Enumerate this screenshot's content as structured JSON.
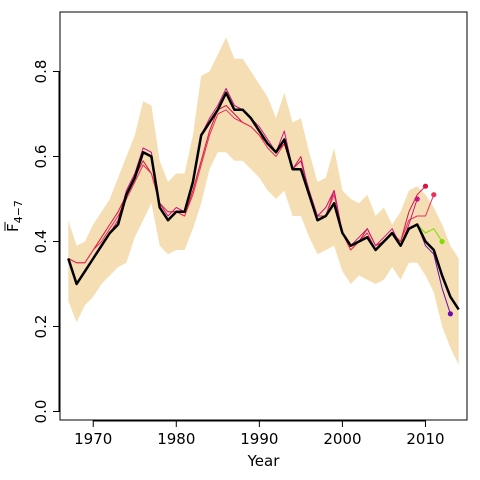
{
  "chart_data": {
    "type": "line",
    "xlabel": "Year",
    "ylabel": "F",
    "ylabel_subscript": "4−7",
    "xlim": [
      1966,
      2015
    ],
    "ylim": [
      -0.02,
      0.94
    ],
    "xticks": [
      1970,
      1980,
      1990,
      2000,
      2010
    ],
    "yticks": [
      0.0,
      0.2,
      0.4,
      0.6,
      0.8
    ],
    "ytick_labels": [
      "0.0",
      "0.2",
      "0.4",
      "0.6",
      "0.8"
    ],
    "colors": {
      "band": "#f5deb3",
      "main": "#000000",
      "retro_early": "#4b0082",
      "retro_mid": "#c71585",
      "retro_late": "#dc143c",
      "retro_green": "#7fdd00"
    },
    "band": {
      "x": [
        1967,
        1968,
        1969,
        1970,
        1971,
        1972,
        1973,
        1974,
        1975,
        1976,
        1977,
        1978,
        1979,
        1980,
        1981,
        1982,
        1983,
        1984,
        1985,
        1986,
        1987,
        1988,
        1989,
        1990,
        1991,
        1992,
        1993,
        1994,
        1995,
        1996,
        1997,
        1998,
        1999,
        2000,
        2001,
        2002,
        2003,
        2004,
        2005,
        2006,
        2007,
        2008,
        2009,
        2010,
        2011,
        2012,
        2013,
        2014
      ],
      "upper": [
        0.45,
        0.39,
        0.4,
        0.44,
        0.47,
        0.5,
        0.55,
        0.6,
        0.65,
        0.73,
        0.72,
        0.59,
        0.54,
        0.56,
        0.56,
        0.65,
        0.79,
        0.8,
        0.84,
        0.88,
        0.83,
        0.83,
        0.8,
        0.77,
        0.74,
        0.69,
        0.75,
        0.68,
        0.69,
        0.61,
        0.54,
        0.55,
        0.62,
        0.52,
        0.5,
        0.49,
        0.51,
        0.46,
        0.48,
        0.44,
        0.47,
        0.52,
        0.53,
        0.51,
        0.48,
        0.44,
        0.39,
        0.36
      ],
      "lower": [
        0.26,
        0.21,
        0.25,
        0.27,
        0.3,
        0.32,
        0.34,
        0.35,
        0.41,
        0.45,
        0.49,
        0.39,
        0.37,
        0.38,
        0.38,
        0.43,
        0.49,
        0.57,
        0.61,
        0.61,
        0.59,
        0.59,
        0.57,
        0.55,
        0.52,
        0.5,
        0.52,
        0.46,
        0.46,
        0.41,
        0.37,
        0.38,
        0.39,
        0.33,
        0.3,
        0.32,
        0.31,
        0.3,
        0.31,
        0.34,
        0.31,
        0.35,
        0.35,
        0.32,
        0.28,
        0.2,
        0.15,
        0.11
      ]
    },
    "series": [
      {
        "color": "#dc143c",
        "width": 1,
        "x": [
          1967,
          1968,
          1969,
          1970,
          1971,
          1972,
          1973,
          1974,
          1975,
          1976,
          1977,
          1978,
          1979,
          1980,
          1981,
          1982,
          1983,
          1984,
          1985,
          1986,
          1987,
          1988,
          1989,
          1990,
          1991,
          1992,
          1993,
          1994,
          1995,
          1996,
          1997,
          1998,
          1999,
          2000,
          2001,
          2002,
          2003,
          2004,
          2005,
          2006,
          2007,
          2008,
          2009,
          2010
        ],
        "y": [
          0.36,
          0.35,
          0.35,
          0.38,
          0.41,
          0.44,
          0.47,
          0.51,
          0.55,
          0.59,
          0.56,
          0.49,
          0.47,
          0.47,
          0.46,
          0.52,
          0.59,
          0.66,
          0.71,
          0.72,
          0.7,
          0.68,
          0.67,
          0.65,
          0.63,
          0.61,
          0.63,
          0.57,
          0.6,
          0.51,
          0.46,
          0.46,
          0.52,
          0.42,
          0.38,
          0.4,
          0.43,
          0.39,
          0.4,
          0.42,
          0.4,
          0.47,
          0.51,
          0.53
        ],
        "end_marker": true
      },
      {
        "color": "#e8305c",
        "width": 1,
        "x": [
          1967,
          1968,
          1969,
          1970,
          1971,
          1972,
          1973,
          1974,
          1975,
          1976,
          1977,
          1978,
          1979,
          1980,
          1981,
          1982,
          1983,
          1984,
          1985,
          1986,
          1987,
          1988,
          1989,
          1990,
          1991,
          1992,
          1993,
          1994,
          1995,
          1996,
          1997,
          1998,
          1999,
          2000,
          2001,
          2002,
          2003,
          2004,
          2005,
          2006,
          2007,
          2008,
          2009,
          2010,
          2011
        ],
        "y": [
          0.36,
          0.35,
          0.35,
          0.38,
          0.4,
          0.43,
          0.46,
          0.5,
          0.54,
          0.58,
          0.56,
          0.49,
          0.47,
          0.47,
          0.46,
          0.51,
          0.58,
          0.65,
          0.7,
          0.71,
          0.69,
          0.68,
          0.67,
          0.65,
          0.62,
          0.6,
          0.63,
          0.57,
          0.59,
          0.51,
          0.45,
          0.46,
          0.51,
          0.42,
          0.38,
          0.4,
          0.42,
          0.38,
          0.4,
          0.42,
          0.4,
          0.45,
          0.46,
          0.46,
          0.51
        ],
        "end_marker": true
      },
      {
        "color": "#c71585",
        "width": 1,
        "x": [
          1967,
          1968,
          1969,
          1970,
          1971,
          1972,
          1973,
          1974,
          1975,
          1976,
          1977,
          1978,
          1979,
          1980,
          1981,
          1982,
          1983,
          1984,
          1985,
          1986,
          1987,
          1988,
          1989,
          1990,
          1991,
          1992,
          1993,
          1994,
          1995,
          1996,
          1997,
          1998,
          1999,
          2000,
          2001,
          2002,
          2003,
          2004,
          2005,
          2006,
          2007,
          2008,
          2009
        ],
        "y": [
          0.36,
          0.3,
          0.33,
          0.36,
          0.39,
          0.42,
          0.45,
          0.52,
          0.56,
          0.62,
          0.61,
          0.49,
          0.46,
          0.48,
          0.47,
          0.54,
          0.65,
          0.69,
          0.72,
          0.76,
          0.72,
          0.71,
          0.69,
          0.67,
          0.64,
          0.61,
          0.66,
          0.57,
          0.59,
          0.52,
          0.46,
          0.48,
          0.52,
          0.42,
          0.39,
          0.41,
          0.43,
          0.39,
          0.41,
          0.43,
          0.39,
          0.44,
          0.5
        ],
        "end_marker": true
      },
      {
        "color": "#7fdd00",
        "width": 1,
        "x": [
          2008,
          2009,
          2010,
          2011,
          2012
        ],
        "y": [
          0.43,
          0.44,
          0.42,
          0.43,
          0.4
        ],
        "end_marker": true
      },
      {
        "color": "#6a0dad",
        "width": 1,
        "x": [
          2008,
          2009,
          2010,
          2011,
          2012,
          2013
        ],
        "y": [
          0.43,
          0.44,
          0.39,
          0.37,
          0.29,
          0.23
        ],
        "end_marker": true
      },
      {
        "color": "#000000",
        "width": 2.5,
        "x": [
          1967,
          1968,
          1969,
          1970,
          1971,
          1972,
          1973,
          1974,
          1975,
          1976,
          1977,
          1978,
          1979,
          1980,
          1981,
          1982,
          1983,
          1984,
          1985,
          1986,
          1987,
          1988,
          1989,
          1990,
          1991,
          1992,
          1993,
          1994,
          1995,
          1996,
          1997,
          1998,
          1999,
          2000,
          2001,
          2002,
          2003,
          2004,
          2005,
          2006,
          2007,
          2008,
          2009,
          2010,
          2011,
          2012,
          2013,
          2014
        ],
        "y": [
          0.36,
          0.3,
          0.33,
          0.36,
          0.39,
          0.42,
          0.44,
          0.51,
          0.55,
          0.61,
          0.6,
          0.48,
          0.45,
          0.47,
          0.47,
          0.54,
          0.65,
          0.68,
          0.71,
          0.75,
          0.71,
          0.71,
          0.69,
          0.66,
          0.63,
          0.61,
          0.64,
          0.57,
          0.57,
          0.51,
          0.45,
          0.46,
          0.49,
          0.42,
          0.39,
          0.4,
          0.41,
          0.38,
          0.4,
          0.42,
          0.39,
          0.43,
          0.44,
          0.4,
          0.38,
          0.32,
          0.27,
          0.24
        ],
        "end_marker": false
      }
    ]
  }
}
